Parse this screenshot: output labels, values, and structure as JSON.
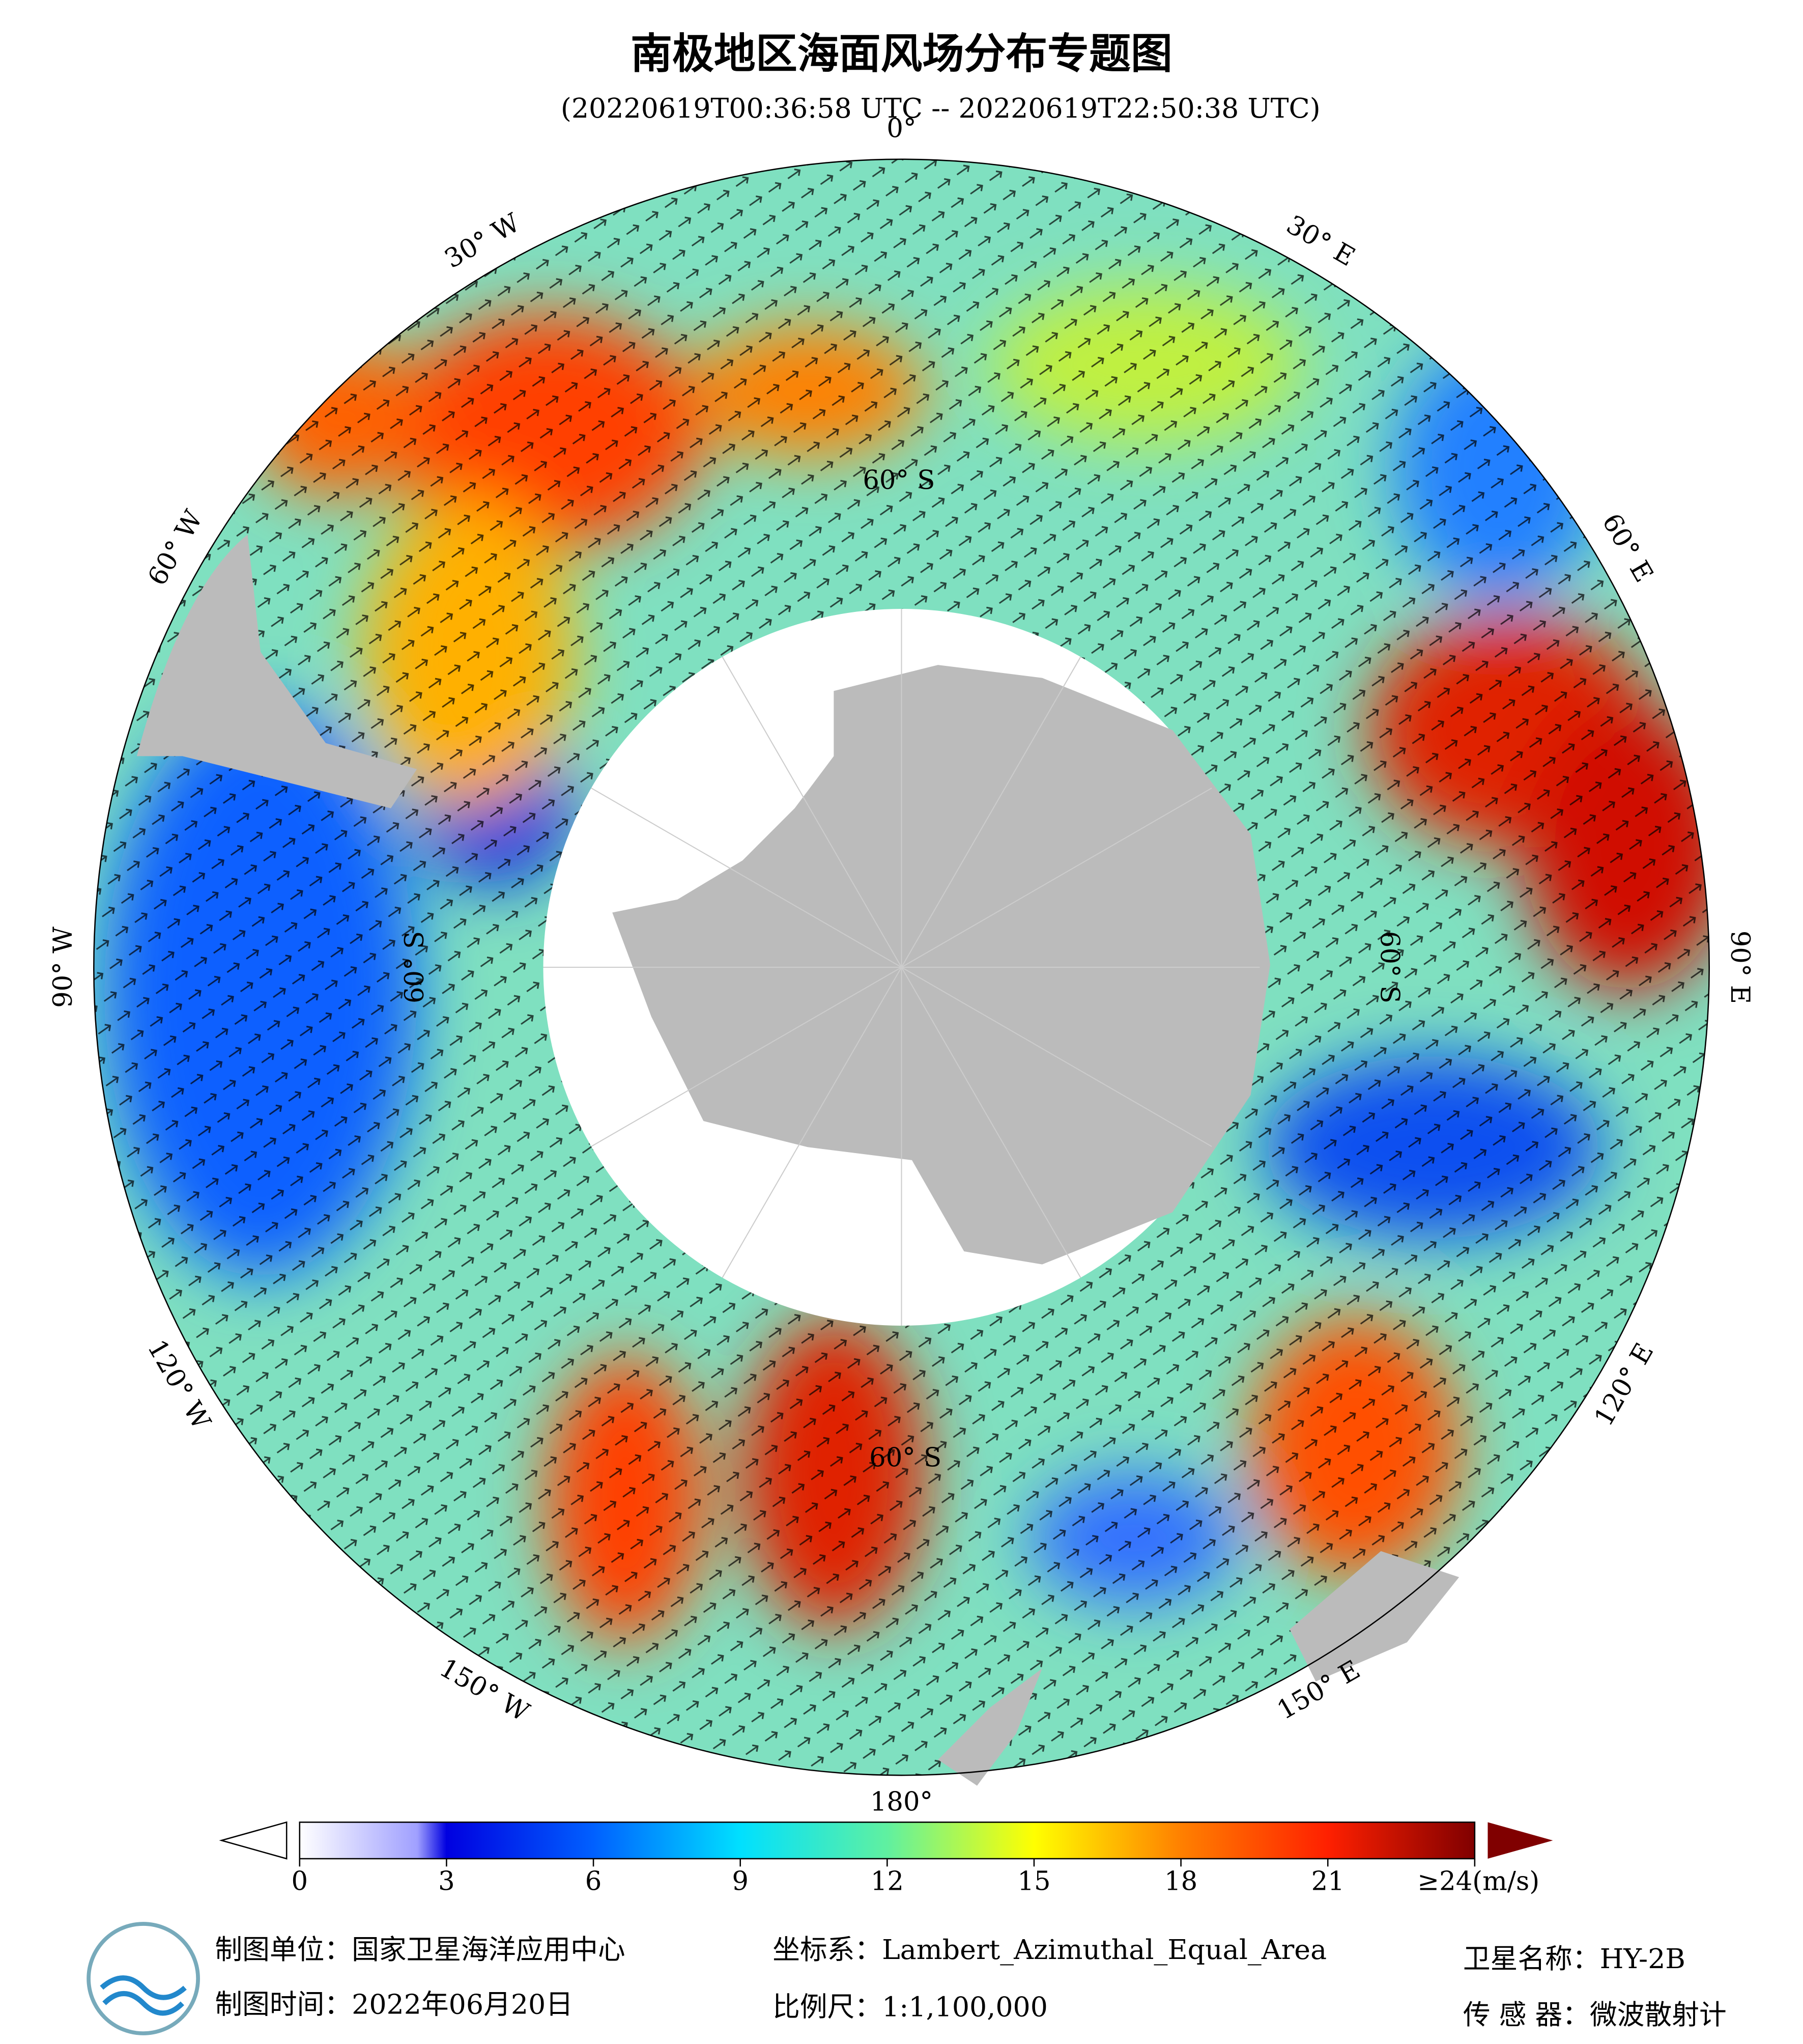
{
  "header": {
    "title": "南极地区海面风场分布专题图",
    "subtitle": "(20220619T00:36:58 UTC -- 20220619T22:50:38 UTC)"
  },
  "map": {
    "longitude_labels": [
      "0°",
      "30° E",
      "60° E",
      "90° E",
      "120° E",
      "150° E",
      "180°",
      "150° W",
      "120° W",
      "90° W",
      "60° W",
      "30° W"
    ],
    "latitude_labels": [
      "60° S",
      "60° S",
      "60° S",
      "60° S"
    ]
  },
  "colorbar": {
    "range": [
      0,
      24
    ],
    "ticks": [
      0,
      3,
      6,
      9,
      12,
      15,
      18,
      21,
      {
        "value": 24,
        "label": "≥24(m/s)"
      }
    ]
  },
  "footer": {
    "unit": "制图单位：国家卫星海洋应用中心",
    "coordinate_system": "坐标系：Lambert_Azimuthal_Equal_Area",
    "satellite": "卫星名称：HY-2B",
    "date": "制图时间：2022年06月20日",
    "scale": "比例尺：1:1,100,000",
    "sensor": "传 感 器：微波散射计"
  }
}
